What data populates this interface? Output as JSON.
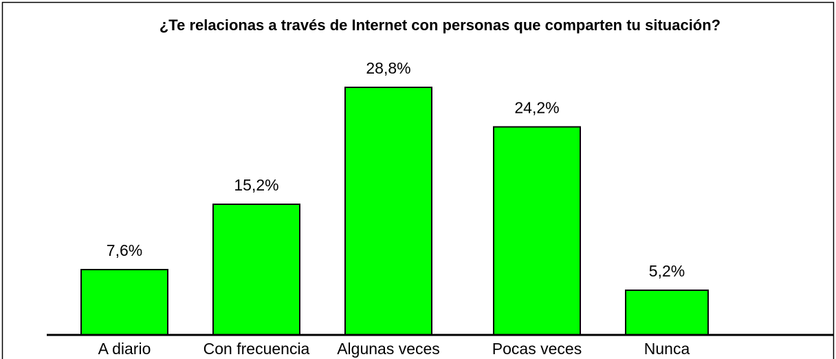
{
  "chart_data": {
    "type": "bar",
    "title": "¿Te relacionas a través de Internet con personas que comparten tu situación?",
    "categories": [
      "A diario",
      "Con frecuencia",
      "Algunas veces",
      "Pocas veces",
      "Nunca"
    ],
    "values": [
      7.6,
      15.2,
      28.8,
      24.2,
      5.2
    ],
    "value_labels": [
      "7,6%",
      "15,2%",
      "28,8%",
      "24,2%",
      "5,2%"
    ],
    "color": "#00ff00"
  }
}
